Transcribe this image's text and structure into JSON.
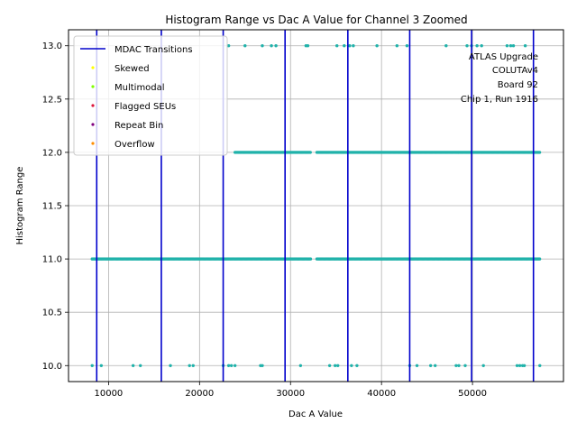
{
  "chart_data": {
    "type": "scatter",
    "title": "Histogram Range vs Dac A Value for Channel 3 Zoomed",
    "xlabel": "Dac A Value",
    "ylabel": "Histogram Range",
    "xlim": [
      5600,
      60000
    ],
    "ylim": [
      9.85,
      13.15
    ],
    "xticks": [
      10000,
      20000,
      30000,
      40000,
      50000
    ],
    "yticks": [
      10.0,
      10.5,
      11.0,
      11.5,
      12.0,
      12.5,
      13.0
    ],
    "xtick_labels": [
      "10000",
      "20000",
      "30000",
      "40000",
      "50000"
    ],
    "ytick_labels": [
      "10.0",
      "10.5",
      "11.0",
      "11.5",
      "12.0",
      "12.5",
      "13.0"
    ],
    "grid": true,
    "legend_placement": "top-left",
    "mdac_transitions": [
      8700,
      15800,
      22600,
      29400,
      36300,
      43100,
      49900,
      56700
    ],
    "legend": [
      {
        "label": "MDAC Transitions",
        "kind": "line",
        "color": "#0000cc"
      },
      {
        "label": "Skewed",
        "kind": "marker",
        "color": "#ffff00"
      },
      {
        "label": "Multimodal",
        "kind": "marker",
        "color": "#7fff00"
      },
      {
        "label": "Flagged SEUs",
        "kind": "marker",
        "color": "#dc143c"
      },
      {
        "label": "Repeat Bin",
        "kind": "marker",
        "color": "#800080"
      },
      {
        "label": "Overflow",
        "kind": "marker",
        "color": "#ff8c00"
      }
    ],
    "point_color": "#20b2aa",
    "series": [
      {
        "y": 11,
        "dense_ranges": [
          [
            8200,
            32200
          ],
          [
            32900,
            57400
          ]
        ],
        "x": []
      },
      {
        "y": 12,
        "dense_ranges": [
          [
            23900,
            32200
          ],
          [
            32900,
            57400
          ]
        ],
        "x": []
      },
      {
        "y": 10,
        "dense_ranges": [],
        "x": [
          8200,
          9200,
          12700,
          13500,
          16800,
          18900,
          19300,
          22600,
          23200,
          23500,
          23900,
          26700,
          26900,
          31100,
          34300,
          34900,
          35200,
          36700,
          37300,
          43100,
          43900,
          45400,
          45900,
          48200,
          48500,
          49200,
          51200,
          54900,
          55200,
          55500,
          55700,
          57400
        ]
      },
      {
        "y": 13,
        "dense_ranges": [],
        "x": [
          23200,
          25000,
          26900,
          27900,
          28400,
          31700,
          31900,
          35100,
          35900,
          36500,
          36900,
          39500,
          41700,
          42800,
          47100,
          49400,
          49900,
          50500,
          51000,
          53800,
          54200,
          54500,
          55800
        ]
      }
    ],
    "annotation": [
      "ATLAS Upgrade",
      "COLUTAv4",
      "Board 92",
      "Chip 1, Run 1916"
    ]
  }
}
